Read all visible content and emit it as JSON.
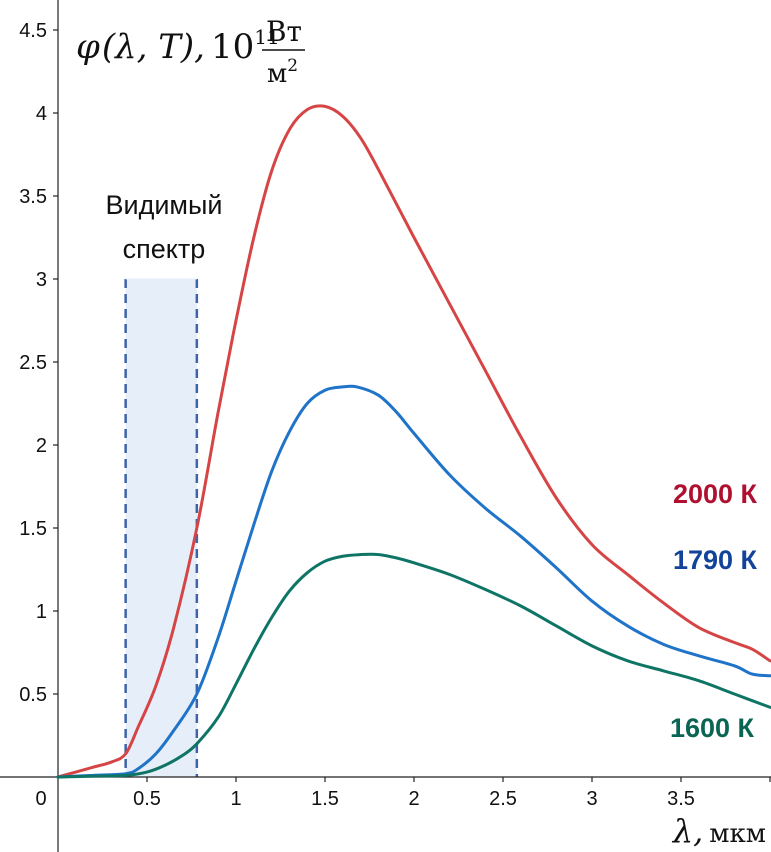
{
  "chart_data": {
    "type": "line",
    "ylabel": {
      "phi": "φ",
      "args": "(λ, T),",
      "base": "10",
      "exp": "11",
      "unit_num": "Вт",
      "unit_den": "м",
      "unit_den_exp": "2"
    },
    "xlabel": {
      "symbol": "λ,",
      "unit": "мкм"
    },
    "xlim": [
      0,
      4.0
    ],
    "ylim": [
      0,
      4.6
    ],
    "x_ticks": [
      {
        "v": 0.5,
        "label": "0.5"
      },
      {
        "v": 1,
        "label": "1"
      },
      {
        "v": 1.5,
        "label": "1.5"
      },
      {
        "v": 2,
        "label": "2"
      },
      {
        "v": 2.5,
        "label": "2.5"
      },
      {
        "v": 3,
        "label": "3"
      },
      {
        "v": 3.5,
        "label": "3.5"
      }
    ],
    "y_ticks": [
      {
        "v": 0.5,
        "label": "0.5"
      },
      {
        "v": 1,
        "label": "1"
      },
      {
        "v": 1.5,
        "label": "1.5"
      },
      {
        "v": 2,
        "label": "2"
      },
      {
        "v": 2.5,
        "label": "2.5"
      },
      {
        "v": 3,
        "label": "3"
      },
      {
        "v": 3.5,
        "label": "3.5"
      },
      {
        "v": 4,
        "label": "4"
      },
      {
        "v": 4.5,
        "label": "4.5"
      }
    ],
    "origin_label": "0",
    "visible_band": {
      "x_range": [
        0.38,
        0.78
      ],
      "y_top": 3.0,
      "label_lines": [
        "Видимый",
        "спектр"
      ]
    },
    "series": [
      {
        "name": "2000 К",
        "color": "#d64545",
        "label_color": "#b01030",
        "points": [
          [
            0,
            0
          ],
          [
            0.1,
            0.03
          ],
          [
            0.2,
            0.06
          ],
          [
            0.3,
            0.09
          ],
          [
            0.38,
            0.14
          ],
          [
            0.45,
            0.3
          ],
          [
            0.55,
            0.55
          ],
          [
            0.65,
            0.9
          ],
          [
            0.78,
            1.5
          ],
          [
            0.9,
            2.2
          ],
          [
            1.0,
            2.75
          ],
          [
            1.1,
            3.25
          ],
          [
            1.2,
            3.65
          ],
          [
            1.3,
            3.9
          ],
          [
            1.4,
            4.02
          ],
          [
            1.5,
            4.04
          ],
          [
            1.6,
            3.98
          ],
          [
            1.7,
            3.85
          ],
          [
            1.8,
            3.66
          ],
          [
            2.0,
            3.25
          ],
          [
            2.2,
            2.85
          ],
          [
            2.4,
            2.45
          ],
          [
            2.6,
            2.05
          ],
          [
            2.8,
            1.68
          ],
          [
            3.0,
            1.4
          ],
          [
            3.2,
            1.22
          ],
          [
            3.4,
            1.05
          ],
          [
            3.6,
            0.9
          ],
          [
            3.8,
            0.81
          ],
          [
            3.9,
            0.77
          ],
          [
            4.0,
            0.7
          ]
        ]
      },
      {
        "name": "1790 К",
        "color": "#1f73c8",
        "label_color": "#12439a",
        "points": [
          [
            0,
            0
          ],
          [
            0.1,
            0.005
          ],
          [
            0.2,
            0.01
          ],
          [
            0.38,
            0.02
          ],
          [
            0.45,
            0.05
          ],
          [
            0.55,
            0.14
          ],
          [
            0.65,
            0.28
          ],
          [
            0.78,
            0.5
          ],
          [
            0.9,
            0.84
          ],
          [
            1.0,
            1.18
          ],
          [
            1.1,
            1.52
          ],
          [
            1.2,
            1.84
          ],
          [
            1.3,
            2.08
          ],
          [
            1.4,
            2.25
          ],
          [
            1.5,
            2.33
          ],
          [
            1.6,
            2.35
          ],
          [
            1.68,
            2.35
          ],
          [
            1.8,
            2.3
          ],
          [
            1.9,
            2.2
          ],
          [
            2.0,
            2.07
          ],
          [
            2.2,
            1.82
          ],
          [
            2.4,
            1.62
          ],
          [
            2.6,
            1.45
          ],
          [
            2.8,
            1.26
          ],
          [
            3.0,
            1.06
          ],
          [
            3.2,
            0.91
          ],
          [
            3.4,
            0.8
          ],
          [
            3.6,
            0.73
          ],
          [
            3.8,
            0.67
          ],
          [
            3.9,
            0.62
          ],
          [
            4.0,
            0.61
          ]
        ]
      },
      {
        "name": "1600 К",
        "color": "#0e7566",
        "label_color": "#0a6553",
        "points": [
          [
            0,
            0
          ],
          [
            0.2,
            0.005
          ],
          [
            0.38,
            0.01
          ],
          [
            0.5,
            0.03
          ],
          [
            0.6,
            0.07
          ],
          [
            0.7,
            0.13
          ],
          [
            0.78,
            0.2
          ],
          [
            0.9,
            0.36
          ],
          [
            1.0,
            0.56
          ],
          [
            1.1,
            0.77
          ],
          [
            1.2,
            0.96
          ],
          [
            1.3,
            1.12
          ],
          [
            1.4,
            1.23
          ],
          [
            1.5,
            1.3
          ],
          [
            1.6,
            1.33
          ],
          [
            1.7,
            1.34
          ],
          [
            1.8,
            1.34
          ],
          [
            1.9,
            1.32
          ],
          [
            2.0,
            1.29
          ],
          [
            2.2,
            1.22
          ],
          [
            2.4,
            1.13
          ],
          [
            2.6,
            1.03
          ],
          [
            2.8,
            0.91
          ],
          [
            3.0,
            0.79
          ],
          [
            3.2,
            0.7
          ],
          [
            3.4,
            0.64
          ],
          [
            3.6,
            0.58
          ],
          [
            3.8,
            0.5
          ],
          [
            4.0,
            0.42
          ]
        ]
      }
    ]
  }
}
